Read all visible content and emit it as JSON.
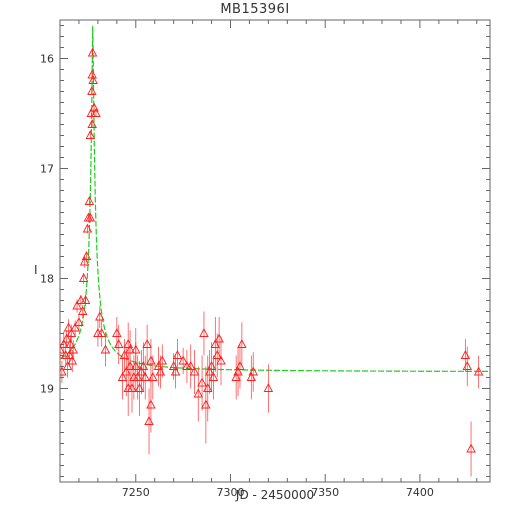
{
  "chart_data": {
    "type": "scatter",
    "title": "MB15396I",
    "xlabel": "JD - 2450000",
    "ylabel": "I",
    "xlim": [
      7210,
      7437
    ],
    "ylim": [
      19.85,
      15.65
    ],
    "y_inverted": true,
    "grid": false,
    "xticks": [
      7250,
      7300,
      7350,
      7400
    ],
    "yticks": [
      16,
      17,
      18,
      19
    ],
    "colors": {
      "points": "#ff2020",
      "model": "#22cc22",
      "axes": "#666666"
    },
    "series": [
      {
        "type": "scatter",
        "marker": "triangle",
        "x": [
          7210,
          7211,
          7212,
          7213,
          7213.5,
          7214,
          7214.5,
          7215,
          7215.5,
          7216,
          7216.5,
          7217,
          7218,
          7219,
          7220,
          7221,
          7222,
          7222.5,
          7223,
          7223.5,
          7224,
          7224.5,
          7225,
          7225.5,
          7226,
          7226,
          7226.5,
          7226.8,
          7227,
          7227,
          7227.2,
          7227.5,
          7228,
          7229,
          7230,
          7231,
          7232,
          7234,
          7240,
          7241,
          7243,
          7244,
          7245,
          7246,
          7246,
          7247,
          7247,
          7248,
          7249,
          7250,
          7250,
          7251,
          7252,
          7253,
          7254,
          7255,
          7256,
          7257,
          7258,
          7258,
          7259,
          7262,
          7263,
          7264,
          7270,
          7271,
          7272,
          7275,
          7277,
          7279,
          7281,
          7283,
          7285,
          7286,
          7287,
          7288,
          7289,
          7290,
          7291,
          7292,
          7293,
          7294,
          7295,
          7303,
          7304,
          7305,
          7306,
          7311,
          7312,
          7320,
          7424,
          7425,
          7427,
          7431
        ],
        "y": [
          18.65,
          18.85,
          18.6,
          18.7,
          18.55,
          18.8,
          18.45,
          18.7,
          18.6,
          18.5,
          18.75,
          18.65,
          18.45,
          18.25,
          18.4,
          18.2,
          18.3,
          18.0,
          17.85,
          18.2,
          17.8,
          17.55,
          17.45,
          17.3,
          17.45,
          16.7,
          16.5,
          16.3,
          16.15,
          16.6,
          15.95,
          16.2,
          16.45,
          16.5,
          18.5,
          18.35,
          18.5,
          18.65,
          18.5,
          18.6,
          18.9,
          18.7,
          18.85,
          19.0,
          18.6,
          18.8,
          18.65,
          19.0,
          18.9,
          18.8,
          18.65,
          18.9,
          19.0,
          18.85,
          18.8,
          18.9,
          18.6,
          19.3,
          19.15,
          18.75,
          18.9,
          18.8,
          18.85,
          18.75,
          18.8,
          18.85,
          18.7,
          18.75,
          18.8,
          18.8,
          18.85,
          19.05,
          18.95,
          18.5,
          19.15,
          19.0,
          18.85,
          18.8,
          18.9,
          18.6,
          18.7,
          18.55,
          18.75,
          18.9,
          18.85,
          18.8,
          18.6,
          18.9,
          18.85,
          19.0,
          18.7,
          18.8,
          19.55,
          18.85
        ],
        "err": [
          0.12,
          0.1,
          0.12,
          0.1,
          0.08,
          0.1,
          0.08,
          0.1,
          0.09,
          0.08,
          0.1,
          0.09,
          0.07,
          0.06,
          0.07,
          0.05,
          0.06,
          0.05,
          0.05,
          0.05,
          0.04,
          0.04,
          0.04,
          0.03,
          0.04,
          0.03,
          0.03,
          0.03,
          0.03,
          0.03,
          0.03,
          0.03,
          0.03,
          0.03,
          0.12,
          0.1,
          0.12,
          0.15,
          0.15,
          0.18,
          0.2,
          0.15,
          0.22,
          0.25,
          0.2,
          0.2,
          0.18,
          0.22,
          0.2,
          0.22,
          0.2,
          0.2,
          0.25,
          0.2,
          0.22,
          0.2,
          0.18,
          0.3,
          0.25,
          0.2,
          0.2,
          0.18,
          0.15,
          0.15,
          0.12,
          0.15,
          0.15,
          0.12,
          0.15,
          0.2,
          0.2,
          0.25,
          0.25,
          0.2,
          0.35,
          0.3,
          0.2,
          0.22,
          0.2,
          0.25,
          0.2,
          0.2,
          0.22,
          0.2,
          0.22,
          0.2,
          0.2,
          0.2,
          0.18,
          0.22,
          0.15,
          0.18,
          0.25,
          0.15
        ]
      },
      {
        "type": "line",
        "model": "single-lens microlensing fit",
        "t0": 7227.3,
        "baseline": 18.85
      }
    ]
  }
}
